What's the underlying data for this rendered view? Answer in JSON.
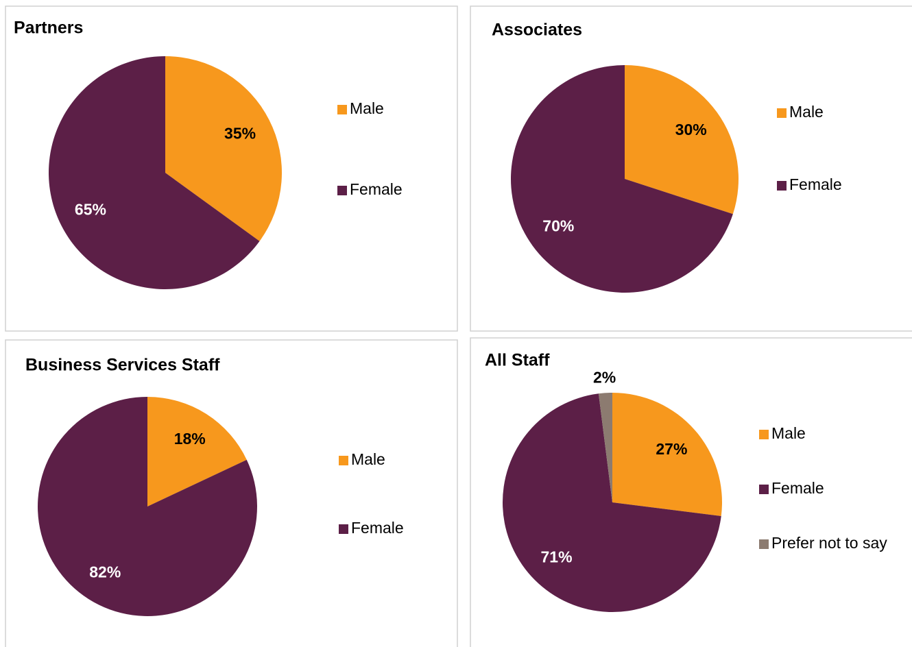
{
  "chart_data": [
    {
      "type": "pie",
      "title": "Partners",
      "categories": [
        "Male",
        "Female"
      ],
      "values": [
        35,
        65
      ],
      "value_labels": [
        "35%",
        "65%"
      ],
      "colors": [
        "#F7981D",
        "#5C1F47"
      ]
    },
    {
      "type": "pie",
      "title": "Associates",
      "categories": [
        "Male",
        "Female"
      ],
      "values": [
        30,
        70
      ],
      "value_labels": [
        "30%",
        "70%"
      ],
      "colors": [
        "#F7981D",
        "#5C1F47"
      ]
    },
    {
      "type": "pie",
      "title": "Business Services Staff",
      "categories": [
        "Male",
        "Female"
      ],
      "values": [
        18,
        82
      ],
      "value_labels": [
        "18%",
        "82%"
      ],
      "colors": [
        "#F7981D",
        "#5C1F47"
      ]
    },
    {
      "type": "pie",
      "title": "All Staff",
      "categories": [
        "Male",
        "Female",
        "Prefer not to say"
      ],
      "values": [
        27,
        71,
        2
      ],
      "value_labels": [
        "27%",
        "71%",
        "2%"
      ],
      "colors": [
        "#F7981D",
        "#5C1F47",
        "#8C7B70"
      ]
    }
  ]
}
